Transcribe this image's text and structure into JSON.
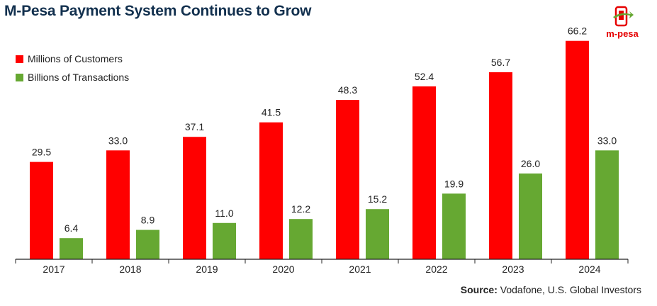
{
  "title": "M-Pesa Payment System Continues to Grow",
  "logo": {
    "text": "m-pesa",
    "icon": "phone-with-arrow-icon",
    "color": "#e60000"
  },
  "source": {
    "label": "Source:",
    "text": "Vodafone, U.S. Global Investors"
  },
  "chart_data": {
    "type": "bar",
    "categories": [
      "2017",
      "2018",
      "2019",
      "2020",
      "2021",
      "2022",
      "2023",
      "2024"
    ],
    "series": [
      {
        "name": "Millions of Customers",
        "color": "#ff0000",
        "values": [
          29.5,
          33.0,
          37.1,
          41.5,
          48.3,
          52.4,
          56.7,
          66.2
        ]
      },
      {
        "name": "Billions of Transactions",
        "color": "#66a832",
        "values": [
          6.4,
          8.9,
          11.0,
          12.2,
          15.2,
          19.9,
          26.0,
          33.0
        ]
      }
    ],
    "title": "M-Pesa Payment System Continues to Grow",
    "xlabel": "",
    "ylabel": "",
    "ylim": [
      0,
      70
    ],
    "grid": false,
    "legend": "top-left",
    "data_labels": true
  }
}
